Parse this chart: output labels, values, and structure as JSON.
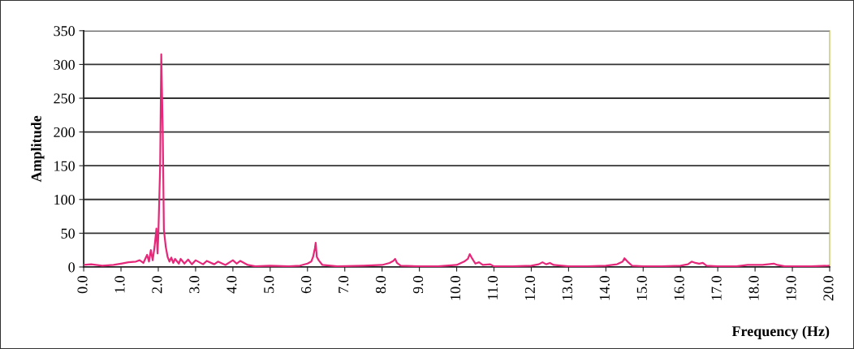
{
  "chart_data": {
    "type": "line",
    "xlabel": "Frequency (Hz)",
    "ylabel": "Amplitude",
    "series": [
      {
        "color": "#e6287a",
        "x": [
          0.0,
          0.2,
          0.5,
          0.8,
          1.0,
          1.2,
          1.4,
          1.5,
          1.6,
          1.7,
          1.75,
          1.8,
          1.85,
          1.9,
          1.95,
          1.98,
          2.0,
          2.05,
          2.08,
          2.12,
          2.15,
          2.2,
          2.25,
          2.3,
          2.35,
          2.4,
          2.45,
          2.55,
          2.6,
          2.7,
          2.8,
          2.9,
          3.0,
          3.2,
          3.3,
          3.5,
          3.6,
          3.8,
          4.0,
          4.1,
          4.2,
          4.4,
          4.6,
          5.0,
          5.5,
          5.8,
          6.0,
          6.1,
          6.15,
          6.2,
          6.22,
          6.25,
          6.3,
          6.4,
          6.8,
          7.5,
          8.0,
          8.2,
          8.3,
          8.35,
          8.4,
          8.5,
          9.0,
          9.5,
          10.0,
          10.2,
          10.3,
          10.35,
          10.4,
          10.5,
          10.6,
          10.7,
          10.9,
          11.0,
          11.5,
          12.0,
          12.2,
          12.3,
          12.4,
          12.5,
          12.6,
          13.0,
          13.5,
          14.0,
          14.3,
          14.45,
          14.5,
          14.6,
          14.7,
          15.0,
          15.5,
          16.0,
          16.2,
          16.3,
          16.4,
          16.5,
          16.6,
          16.7,
          17.0,
          17.5,
          17.8,
          18.2,
          18.5,
          18.6,
          18.8,
          19.5,
          20.0
        ],
        "values": [
          3,
          4,
          2,
          3,
          5,
          7,
          8,
          10,
          6,
          18,
          8,
          25,
          10,
          30,
          57,
          20,
          45,
          150,
          315,
          200,
          55,
          30,
          15,
          8,
          14,
          6,
          12,
          5,
          12,
          5,
          11,
          4,
          10,
          4,
          9,
          4,
          8,
          3,
          10,
          5,
          9,
          3,
          1,
          2,
          1,
          2,
          5,
          8,
          15,
          28,
          36,
          15,
          10,
          3,
          1,
          2,
          3,
          6,
          9,
          12,
          6,
          2,
          1,
          1,
          3,
          8,
          12,
          19,
          14,
          5,
          7,
          3,
          4,
          1,
          1,
          2,
          4,
          7,
          4,
          6,
          3,
          1,
          1,
          2,
          4,
          8,
          13,
          7,
          2,
          1,
          1,
          2,
          4,
          8,
          6,
          5,
          6,
          2,
          1,
          1,
          3,
          3,
          5,
          3,
          1,
          1,
          2
        ]
      }
    ],
    "xlim": [
      0,
      20
    ],
    "ylim": [
      0,
      350
    ],
    "xticks": [
      {
        "value": 0,
        "label": "0.0"
      },
      {
        "value": 1,
        "label": "1.0"
      },
      {
        "value": 2,
        "label": "2.0"
      },
      {
        "value": 3,
        "label": "3.0"
      },
      {
        "value": 4,
        "label": "4.0"
      },
      {
        "value": 5,
        "label": "5.0"
      },
      {
        "value": 6,
        "label": "6.0"
      },
      {
        "value": 7,
        "label": "7.0"
      },
      {
        "value": 8,
        "label": "8.0"
      },
      {
        "value": 9,
        "label": "9.0"
      },
      {
        "value": 10,
        "label": "10.0"
      },
      {
        "value": 11,
        "label": "11.0"
      },
      {
        "value": 12,
        "label": "12.0"
      },
      {
        "value": 13,
        "label": "13.0"
      },
      {
        "value": 14,
        "label": "14.0"
      },
      {
        "value": 15,
        "label": "15.0"
      },
      {
        "value": 16,
        "label": "16.0"
      },
      {
        "value": 17,
        "label": "17.0"
      },
      {
        "value": 18,
        "label": "18.0"
      },
      {
        "value": 19,
        "label": "19.0"
      },
      {
        "value": 20,
        "label": "20.0"
      }
    ],
    "yticks": [
      0,
      50,
      100,
      150,
      200,
      250,
      300,
      350
    ],
    "grid": "y"
  }
}
